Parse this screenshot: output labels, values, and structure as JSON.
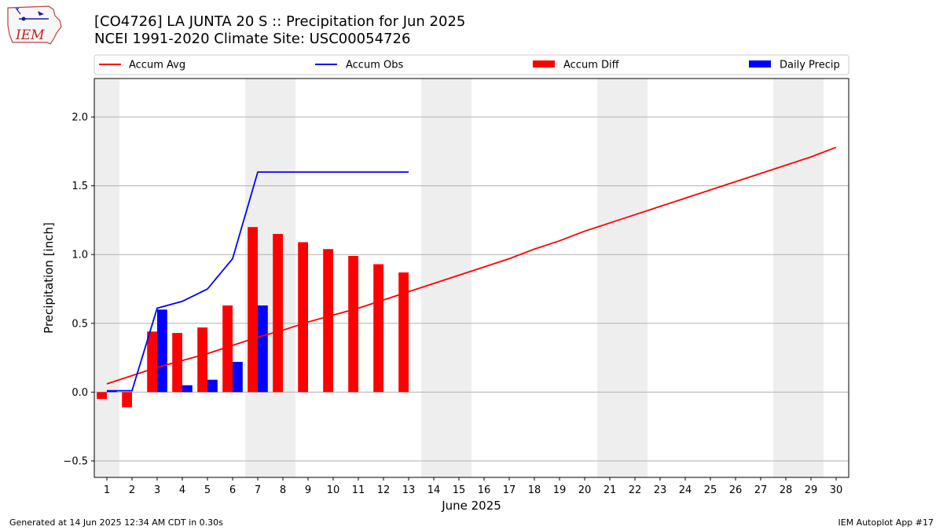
{
  "header": {
    "title_line1": "[CO4726] LA JUNTA 20 S :: Precipitation for Jun 2025",
    "title_line2": "NCEI 1991-2020 Climate Site: USC00054726",
    "logo_text": "IEM"
  },
  "footer": {
    "left": "Generated at 14 Jun 2025 12:34 AM CDT in 0.30s",
    "right": "IEM Autoplot App #17"
  },
  "colors": {
    "avg": "#ff0000",
    "obs": "#0000ff",
    "diff": "#ff0000",
    "daily": "#0000ff",
    "weekend_shade": "#eeeeee",
    "grid": "#b0b0b0"
  },
  "chart_data": {
    "type": "bar",
    "xlabel": "June 2025",
    "ylabel": "Precipitation [inch]",
    "ylim": [
      -0.62,
      2.28
    ],
    "yticks": [
      -0.5,
      0.0,
      0.5,
      1.0,
      1.5,
      2.0
    ],
    "ytick_labels": [
      "−0.5",
      "0.0",
      "0.5",
      "1.0",
      "1.5",
      "2.0"
    ],
    "xlim": [
      0.5,
      30.5
    ],
    "days": [
      1,
      2,
      3,
      4,
      5,
      6,
      7,
      8,
      9,
      10,
      11,
      12,
      13,
      14,
      15,
      16,
      17,
      18,
      19,
      20,
      21,
      22,
      23,
      24,
      25,
      26,
      27,
      28,
      29,
      30
    ],
    "weekend_days": [
      1,
      7,
      8,
      14,
      15,
      21,
      22,
      28,
      29
    ],
    "grid": "y",
    "legend": {
      "placement": "top",
      "entries": [
        "Accum Avg",
        "Accum Obs",
        "Accum Diff",
        "Daily Precip"
      ]
    },
    "series": [
      {
        "name": "Accum Avg",
        "kind": "line",
        "x": [
          1,
          2,
          3,
          4,
          5,
          6,
          7,
          8,
          9,
          10,
          11,
          12,
          13,
          14,
          15,
          16,
          17,
          18,
          19,
          20,
          21,
          22,
          23,
          24,
          25,
          26,
          27,
          28,
          29,
          30
        ],
        "values": [
          0.06,
          0.12,
          0.18,
          0.23,
          0.28,
          0.34,
          0.4,
          0.45,
          0.51,
          0.56,
          0.61,
          0.67,
          0.73,
          0.79,
          0.85,
          0.91,
          0.97,
          1.04,
          1.1,
          1.17,
          1.23,
          1.29,
          1.35,
          1.41,
          1.47,
          1.53,
          1.59,
          1.65,
          1.71,
          1.78
        ]
      },
      {
        "name": "Accum Obs",
        "kind": "line",
        "x": [
          1,
          2,
          3,
          4,
          5,
          6,
          7,
          8,
          9,
          10,
          11,
          12,
          13
        ],
        "values": [
          0.01,
          0.01,
          0.61,
          0.66,
          0.75,
          0.97,
          1.6,
          1.6,
          1.6,
          1.6,
          1.6,
          1.6,
          1.6
        ]
      },
      {
        "name": "Accum Diff",
        "kind": "bar",
        "x": [
          1,
          2,
          3,
          4,
          5,
          6,
          7,
          8,
          9,
          10,
          11,
          12,
          13
        ],
        "values": [
          -0.05,
          -0.11,
          0.44,
          0.43,
          0.47,
          0.63,
          1.2,
          1.15,
          1.09,
          1.04,
          0.99,
          0.93,
          0.87
        ]
      },
      {
        "name": "Daily Precip",
        "kind": "bar",
        "x": [
          1,
          2,
          3,
          4,
          5,
          6,
          7,
          8,
          9,
          10,
          11,
          12,
          13
        ],
        "values": [
          0.01,
          0.0,
          0.6,
          0.05,
          0.09,
          0.22,
          0.63,
          0.0,
          0.0,
          0.0,
          0.0,
          0.0,
          0.0
        ]
      }
    ]
  }
}
